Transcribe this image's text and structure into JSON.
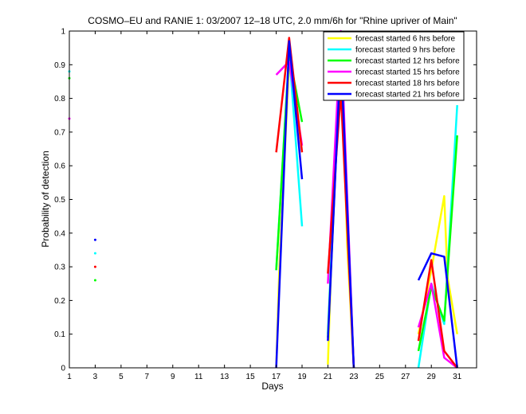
{
  "chart_data": {
    "type": "line",
    "title": "COSMO–EU and RANIE 1: 03/2007 12–18 UTC, 2.0 mm/6h for \"Rhine upriver of Main\"",
    "xlabel": "Days",
    "ylabel": "Probability of detection",
    "xlim": [
      1,
      32.5
    ],
    "ylim": [
      0,
      1
    ],
    "x_ticks": [
      1,
      3,
      5,
      7,
      9,
      11,
      13,
      15,
      17,
      19,
      21,
      23,
      25,
      27,
      29,
      31
    ],
    "y_ticks": [
      0,
      0.1,
      0.2,
      0.3,
      0.4,
      0.5,
      0.6,
      0.7,
      0.8,
      0.9,
      1
    ],
    "x_tick_labels": [
      "1",
      "3",
      "5",
      "7",
      "9",
      "11",
      "13",
      "15",
      "17",
      "19",
      "21",
      "23",
      "25",
      "27",
      "29",
      "31"
    ],
    "y_tick_labels": [
      "0",
      "0.1",
      "0.2",
      "0.3",
      "0.4",
      "0.5",
      "0.6",
      "0.7",
      "0.8",
      "0.9",
      "1"
    ],
    "grid": false,
    "legend_position": "top-right",
    "series": [
      {
        "name": "forecast started 6 hrs before",
        "color": "#ffff00",
        "segments": [
          [
            [
              17,
              0.0
            ],
            [
              17.25,
              0.3
            ],
            [
              18,
              0.91
            ],
            [
              18.5,
              0.75
            ],
            [
              19,
              0.66
            ]
          ],
          [
            [
              21,
              0.01
            ],
            [
              21.25,
              0.3
            ],
            [
              22,
              0.96
            ],
            [
              22.5,
              0.36
            ],
            [
              23,
              0.0
            ]
          ],
          [
            [
              28,
              0.1
            ],
            [
              29,
              0.29
            ],
            [
              30,
              0.51
            ],
            [
              30.25,
              0.27
            ],
            [
              31,
              0.1
            ]
          ]
        ],
        "points": []
      },
      {
        "name": "forecast started 9 hrs before",
        "color": "#00ffff",
        "segments": [
          [
            [
              17,
              0.29
            ],
            [
              18,
              0.94
            ],
            [
              19,
              0.42
            ]
          ],
          [
            [
              21,
              0.1
            ],
            [
              22,
              0.97
            ],
            [
              23,
              0.0
            ]
          ],
          [
            [
              28,
              0.0
            ],
            [
              29,
              0.25
            ],
            [
              30,
              0.13
            ],
            [
              31,
              0.78
            ]
          ]
        ],
        "points": [
          [
            1,
            0.88
          ],
          [
            3,
            0.34
          ]
        ]
      },
      {
        "name": "forecast started 12 hrs before",
        "color": "#00ff00",
        "segments": [
          [
            [
              17,
              0.29
            ],
            [
              18,
              0.93
            ],
            [
              19,
              0.73
            ]
          ],
          [
            [
              21,
              0.09
            ],
            [
              22,
              0.94
            ],
            [
              23,
              0.0
            ]
          ],
          [
            [
              28,
              0.05
            ],
            [
              29,
              0.24
            ],
            [
              30,
              0.14
            ],
            [
              31,
              0.69
            ]
          ]
        ],
        "points": [
          [
            1,
            0.86
          ],
          [
            3,
            0.26
          ]
        ]
      },
      {
        "name": "forecast started 15 hrs before",
        "color": "#ff00ff",
        "segments": [
          [
            [
              17,
              0.87
            ],
            [
              18,
              0.91
            ],
            [
              19,
              0.66
            ]
          ],
          [
            [
              21,
              0.25
            ],
            [
              22,
              1.0
            ],
            [
              23,
              0.0
            ]
          ],
          [
            [
              28,
              0.12
            ],
            [
              29,
              0.25
            ],
            [
              30,
              0.03
            ],
            [
              31,
              0.0
            ]
          ]
        ],
        "points": [
          [
            1,
            0.74
          ]
        ]
      },
      {
        "name": "forecast started 18 hrs before",
        "color": "#ff0000",
        "segments": [
          [
            [
              17,
              0.64
            ],
            [
              18,
              0.98
            ],
            [
              19,
              0.64
            ]
          ],
          [
            [
              21,
              0.28
            ],
            [
              22,
              0.82
            ],
            [
              23,
              0.0
            ]
          ],
          [
            [
              28,
              0.08
            ],
            [
              29,
              0.32
            ],
            [
              30,
              0.05
            ],
            [
              31,
              0.0
            ]
          ]
        ],
        "points": [
          [
            3,
            0.3
          ]
        ]
      },
      {
        "name": "forecast started 21 hrs before",
        "color": "#0000ff",
        "segments": [
          [
            [
              17,
              0.0
            ],
            [
              18,
              0.97
            ],
            [
              19,
              0.56
            ]
          ],
          [
            [
              21,
              0.08
            ],
            [
              22,
              0.94
            ],
            [
              23,
              0.0
            ]
          ],
          [
            [
              28,
              0.26
            ],
            [
              29,
              0.34
            ],
            [
              30,
              0.33
            ],
            [
              31,
              0.0
            ]
          ]
        ],
        "points": [
          [
            3,
            0.38
          ]
        ]
      }
    ]
  }
}
